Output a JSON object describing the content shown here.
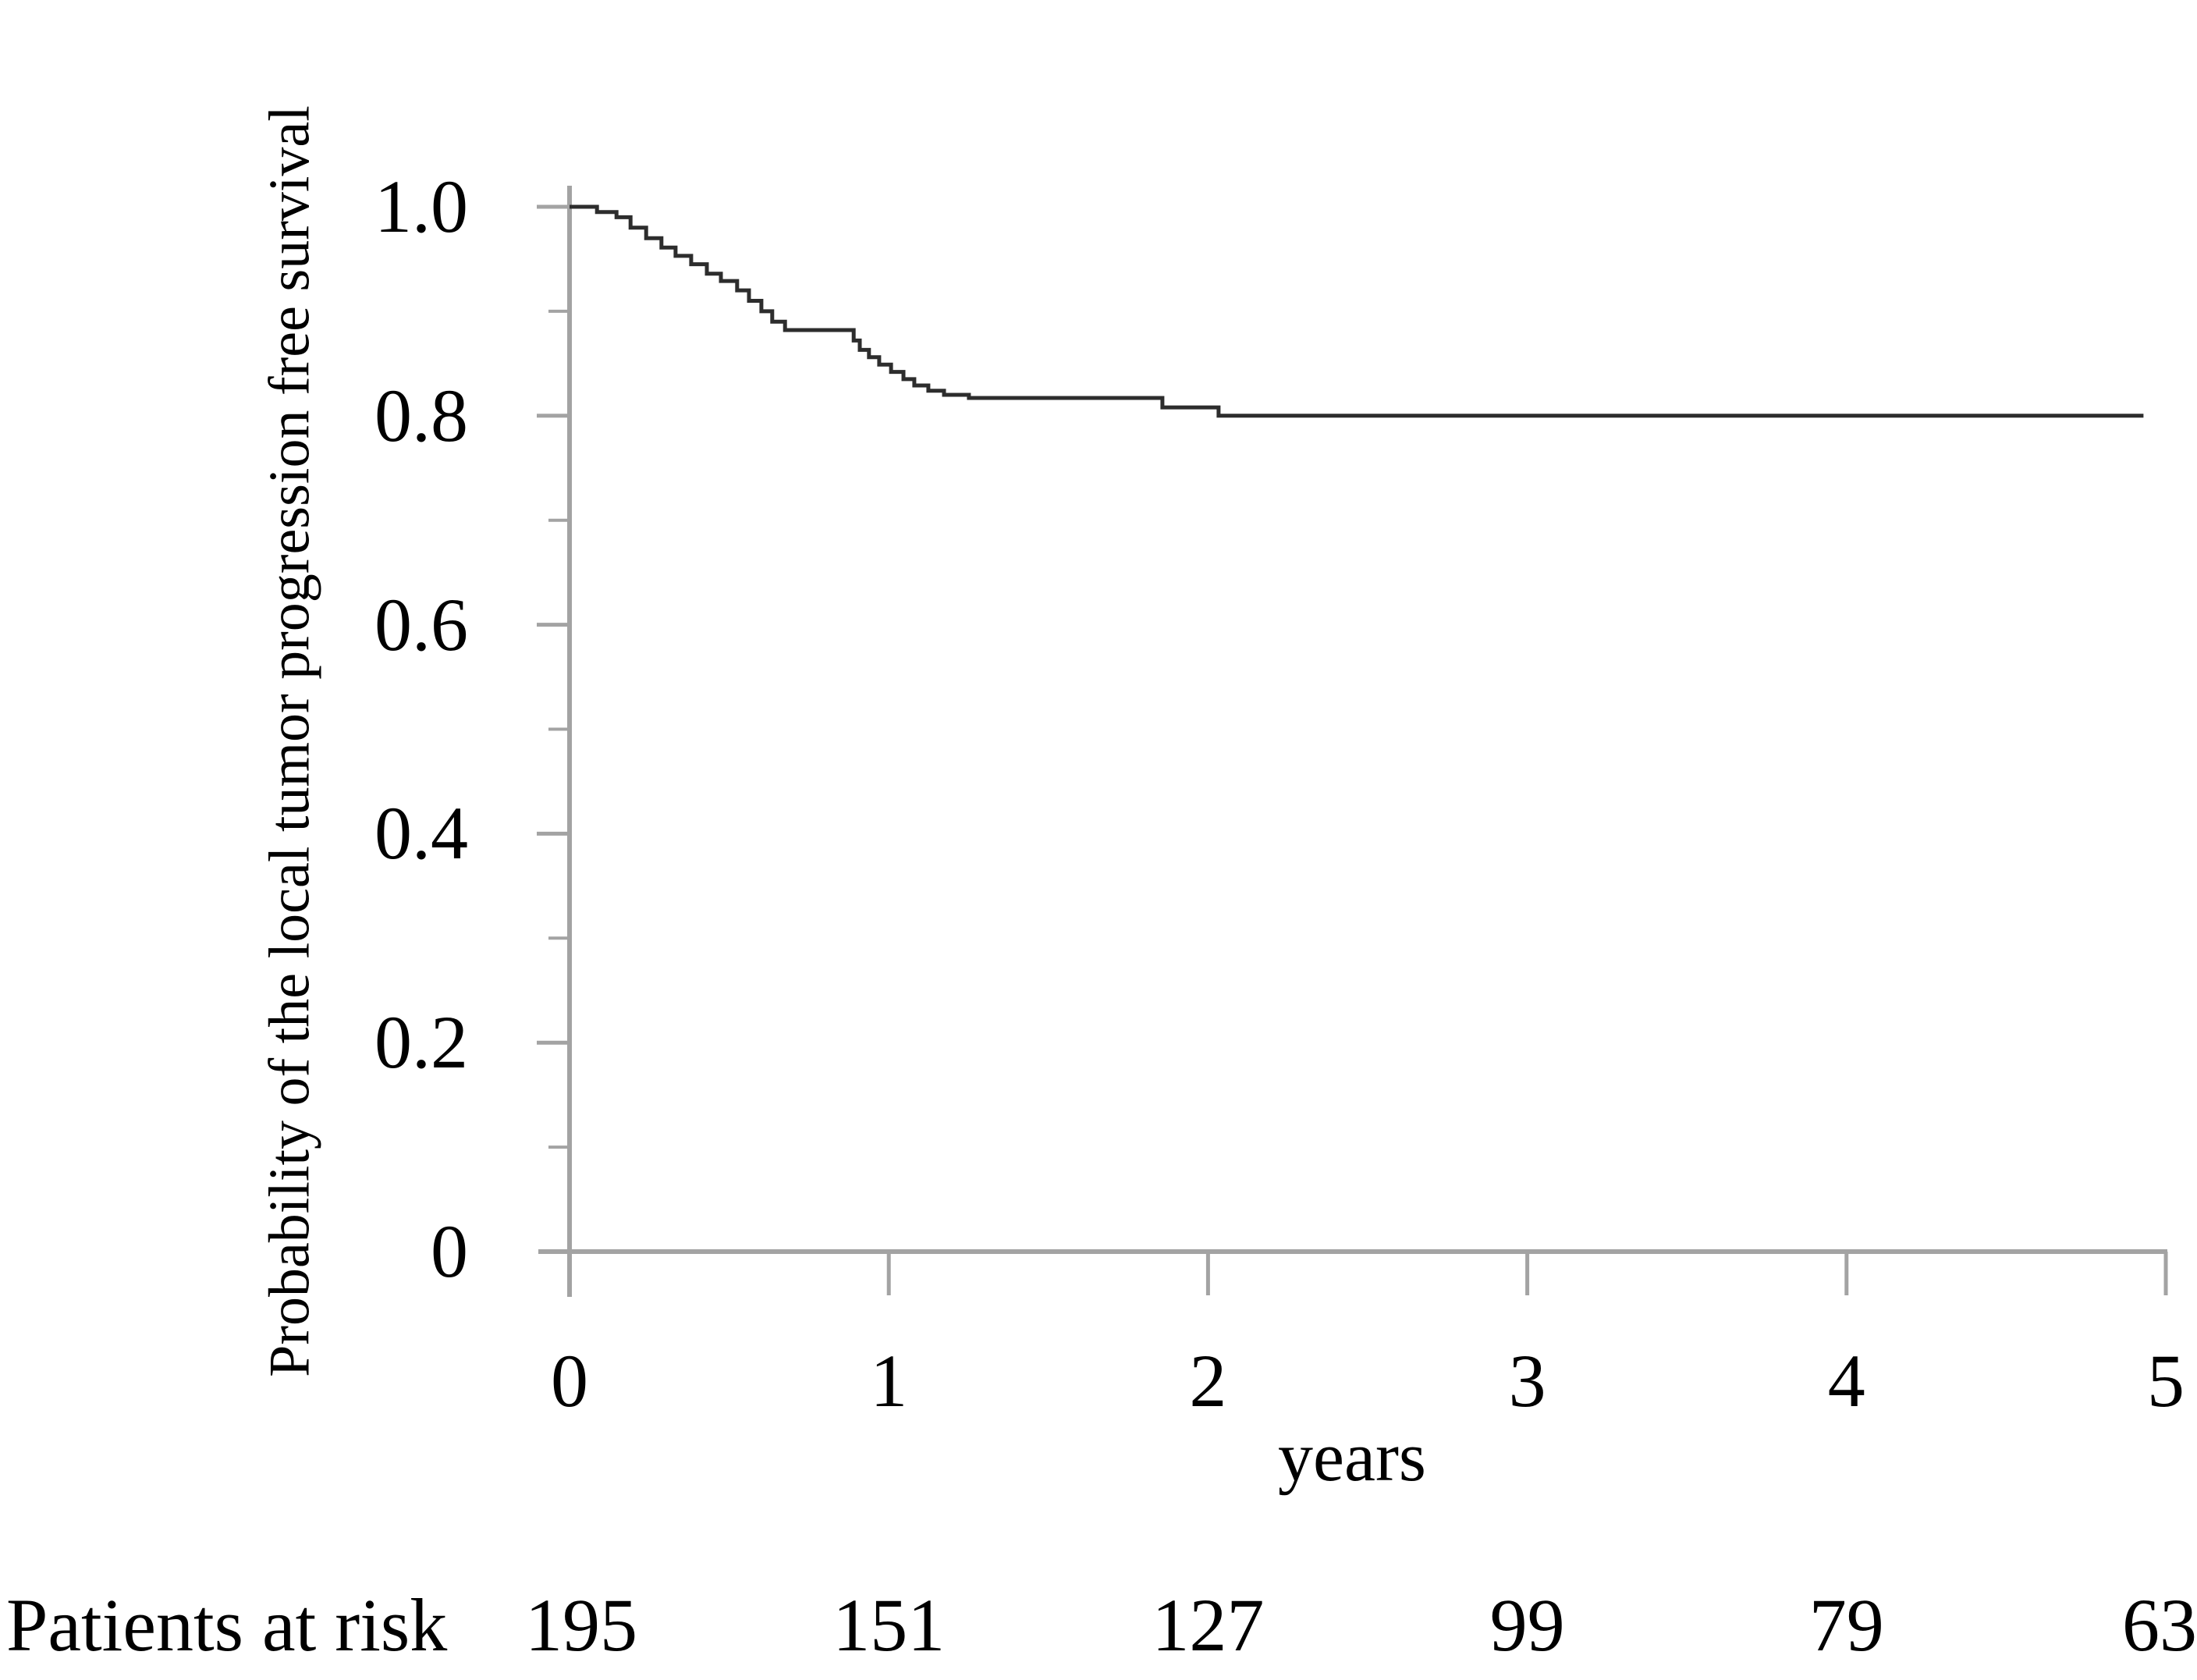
{
  "colors": {
    "background": "#ffffff",
    "axis": "#a3a3a3",
    "curve": "#2d2d2d",
    "text": "#000000"
  },
  "x_axis_label": "years",
  "risk_row": {
    "label": "Patients at risk",
    "values": [
      "195",
      "151",
      "127",
      "99",
      "79",
      "63"
    ]
  },
  "chart_data": {
    "type": "line",
    "subtype": "kaplan-meier-step-curve",
    "title": "",
    "xlabel": "years",
    "ylabel": "Probability of the local tumor progression free survival",
    "xlim": [
      0,
      5
    ],
    "ylim": [
      0,
      1.0
    ],
    "grid": false,
    "legend": null,
    "xticks": [
      {
        "label": "0",
        "value": 0
      },
      {
        "label": "1",
        "value": 1
      },
      {
        "label": "2",
        "value": 2
      },
      {
        "label": "3",
        "value": 3
      },
      {
        "label": "4",
        "value": 4
      },
      {
        "label": "5",
        "value": 5
      }
    ],
    "yticks_major": [
      {
        "label": "1.0",
        "value": 1.0
      },
      {
        "label": "0.8",
        "value": 0.8
      },
      {
        "label": "0.6",
        "value": 0.6
      },
      {
        "label": "0.4",
        "value": 0.4
      },
      {
        "label": "0.2",
        "value": 0.2
      },
      {
        "label": "0",
        "value": 0.0
      }
    ],
    "yticks_minor_values": [
      0.9,
      0.7,
      0.5,
      0.3,
      0.1
    ],
    "patients_at_risk": {
      "label": "Patients at risk",
      "times": [
        0,
        1,
        2,
        3,
        4,
        5
      ],
      "counts": [
        195,
        151,
        127,
        99,
        79,
        63
      ]
    },
    "series": [
      {
        "name": "Local tumor progression free survival",
        "end_t": 4.93,
        "steps": [
          {
            "t": 0.0,
            "p": 1.0
          },
          {
            "t": 0.086,
            "p": 0.995
          },
          {
            "t": 0.147,
            "p": 0.99
          },
          {
            "t": 0.191,
            "p": 0.98
          },
          {
            "t": 0.24,
            "p": 0.97
          },
          {
            "t": 0.288,
            "p": 0.961
          },
          {
            "t": 0.332,
            "p": 0.953
          },
          {
            "t": 0.381,
            "p": 0.945
          },
          {
            "t": 0.43,
            "p": 0.936
          },
          {
            "t": 0.474,
            "p": 0.929
          },
          {
            "t": 0.525,
            "p": 0.92
          },
          {
            "t": 0.562,
            "p": 0.91
          },
          {
            "t": 0.601,
            "p": 0.9
          },
          {
            "t": 0.635,
            "p": 0.89
          },
          {
            "t": 0.675,
            "p": 0.882
          },
          {
            "t": 0.89,
            "p": 0.872
          },
          {
            "t": 0.909,
            "p": 0.863
          },
          {
            "t": 0.938,
            "p": 0.856
          },
          {
            "t": 0.97,
            "p": 0.849
          },
          {
            "t": 1.007,
            "p": 0.842
          },
          {
            "t": 1.046,
            "p": 0.835
          },
          {
            "t": 1.08,
            "p": 0.829
          },
          {
            "t": 1.124,
            "p": 0.824
          },
          {
            "t": 1.173,
            "p": 0.82
          },
          {
            "t": 1.251,
            "p": 0.817
          },
          {
            "t": 1.857,
            "p": 0.808
          },
          {
            "t": 2.033,
            "p": 0.8
          }
        ]
      }
    ]
  }
}
